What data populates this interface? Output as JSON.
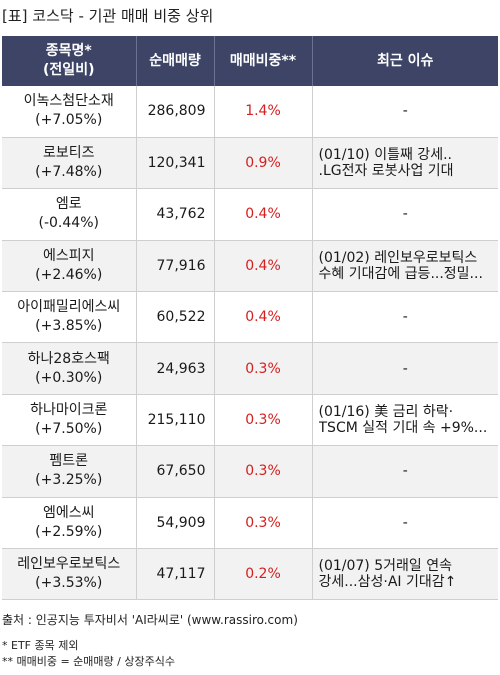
{
  "title": "[표] 코스닥 - 기관 매매 비중 상위",
  "columns": {
    "name_line1": "종목명*",
    "name_line2": "(전일비)",
    "volume": "순매매량",
    "ratio": "매매비중**",
    "issue": "최근 이슈"
  },
  "rows": [
    {
      "name": "이녹스첨단소재",
      "change": "(+7.05%)",
      "volume": "286,809",
      "ratio": "1.4%",
      "issue1": "-",
      "issue2": ""
    },
    {
      "name": "로보티즈",
      "change": "(+7.48%)",
      "volume": "120,341",
      "ratio": "0.9%",
      "issue1": "(01/10) 이틀째 강세..",
      "issue2": ".LG전자 로봇사업 기대"
    },
    {
      "name": "엠로",
      "change": "(-0.44%)",
      "volume": "43,762",
      "ratio": "0.4%",
      "issue1": "-",
      "issue2": ""
    },
    {
      "name": "에스피지",
      "change": "(+2.46%)",
      "volume": "77,916",
      "ratio": "0.4%",
      "issue1": "(01/02) 레인보우로보틱스",
      "issue2": "수혜 기대감에 급등...정밀..."
    },
    {
      "name": "아이패밀리에스씨",
      "change": "(+3.85%)",
      "volume": "60,522",
      "ratio": "0.4%",
      "issue1": "-",
      "issue2": ""
    },
    {
      "name": "하나28호스팩",
      "change": "(+0.30%)",
      "volume": "24,963",
      "ratio": "0.3%",
      "issue1": "-",
      "issue2": ""
    },
    {
      "name": "하나마이크론",
      "change": "(+7.50%)",
      "volume": "215,110",
      "ratio": "0.3%",
      "issue1": "(01/16) 美 금리 하락·",
      "issue2": "TSCM 실적 기대 속 +9%..."
    },
    {
      "name": "펨트론",
      "change": "(+3.25%)",
      "volume": "67,650",
      "ratio": "0.3%",
      "issue1": "-",
      "issue2": ""
    },
    {
      "name": "엠에스씨",
      "change": "(+2.59%)",
      "volume": "54,909",
      "ratio": "0.3%",
      "issue1": "-",
      "issue2": ""
    },
    {
      "name": "레인보우로보틱스",
      "change": "(+3.53%)",
      "volume": "47,117",
      "ratio": "0.2%",
      "issue1": "(01/07) 5거래일 연속",
      "issue2": "강세...삼성·AI 기대감↑"
    }
  ],
  "source": "출처 : 인공지능 투자비서 'AI라씨로' (www.rassiro.com)",
  "note1": "* ETF 종목 제외",
  "note2": "** 매매비중 = 순매매량 / 상장주식수",
  "colors": {
    "header_bg": "#3d4466",
    "ratio_text": "#d52020",
    "alt_row": "#f2f2f2"
  }
}
